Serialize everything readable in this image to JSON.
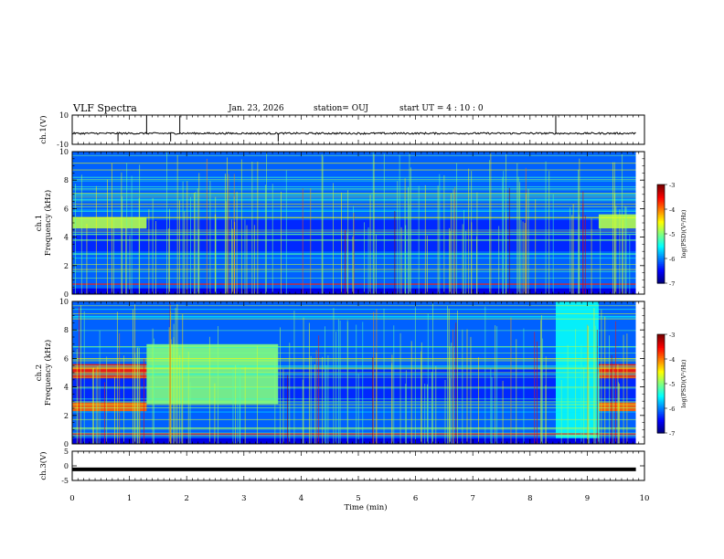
{
  "chart_data": {
    "type": "heatmap",
    "title": "VLF Spectra",
    "date": "Jan. 23, 2026",
    "station": "station= OUJ",
    "start": "start  UT =   4 : 10 : 0",
    "xlabel": "Time  (min)",
    "xlim": [
      0,
      10
    ],
    "xticks": [
      "0",
      "1",
      "2",
      "3",
      "4",
      "5",
      "6",
      "7",
      "8",
      "9",
      "10"
    ],
    "panels": [
      {
        "name": "ch1-waveform",
        "ylabel": "ch.1(V)",
        "ylim": [
          -10,
          10
        ],
        "yticks": [
          "10",
          "-10"
        ],
        "trace": {
          "baseline": -2.5,
          "spikes_min": [
            0.8,
            1.3,
            1.72,
            1.88,
            3.6,
            8.45
          ]
        }
      },
      {
        "name": "ch1-spectrogram",
        "ylabel": "ch.1\nFrequency (kHz)",
        "ylim": [
          0,
          10
        ],
        "yticks": [
          "0",
          "2",
          "4",
          "6",
          "8",
          "10"
        ],
        "colorbar": {
          "label": "log(PSD)(V²/Hz)",
          "range": [
            -7,
            -3
          ],
          "ticks": [
            "-3",
            "-4",
            "-5",
            "-6",
            "-7"
          ]
        },
        "segments": [
          {
            "t0": 0.0,
            "t1": 1.3,
            "band_khz": [
              4.6,
              5.4
            ],
            "level": 0.55
          },
          {
            "t0": 9.2,
            "t1": 9.85,
            "band_khz": [
              4.6,
              5.6
            ],
            "level": 0.55
          }
        ]
      },
      {
        "name": "ch2-spectrogram",
        "ylabel": "ch.2\nFrequency (kHz)",
        "ylim": [
          0,
          10
        ],
        "yticks": [
          "0",
          "2",
          "4",
          "6",
          "8",
          "10"
        ],
        "colorbar": {
          "label": "log(PSD)(V²/Hz)",
          "range": [
            -7,
            -3
          ],
          "ticks": [
            "-3",
            "-4",
            "-5",
            "-6",
            "-7"
          ]
        },
        "segments": [
          {
            "t0": 0.0,
            "t1": 1.3,
            "band_khz": [
              4.6,
              5.6
            ],
            "level": 0.85
          },
          {
            "t0": 0.0,
            "t1": 1.3,
            "band_khz": [
              2.3,
              2.9
            ],
            "level": 0.78
          },
          {
            "t0": 1.3,
            "t1": 3.6,
            "band_khz": [
              2.8,
              7.0
            ],
            "level": 0.5
          },
          {
            "t0": 8.45,
            "t1": 9.2,
            "band_khz": [
              0.0,
              10.0
            ],
            "level": 0.38
          },
          {
            "t0": 9.2,
            "t1": 9.85,
            "band_khz": [
              4.6,
              5.6
            ],
            "level": 0.85
          },
          {
            "t0": 9.2,
            "t1": 9.85,
            "band_khz": [
              2.3,
              2.9
            ],
            "level": 0.78
          }
        ]
      },
      {
        "name": "ch3-waveform",
        "ylabel": "ch.3(V)",
        "ylim": [
          -5,
          5
        ],
        "yticks": [
          "5",
          "0",
          "-5"
        ],
        "trace": {
          "baseline": -1.2
        }
      }
    ],
    "data_end_min": 9.85
  }
}
